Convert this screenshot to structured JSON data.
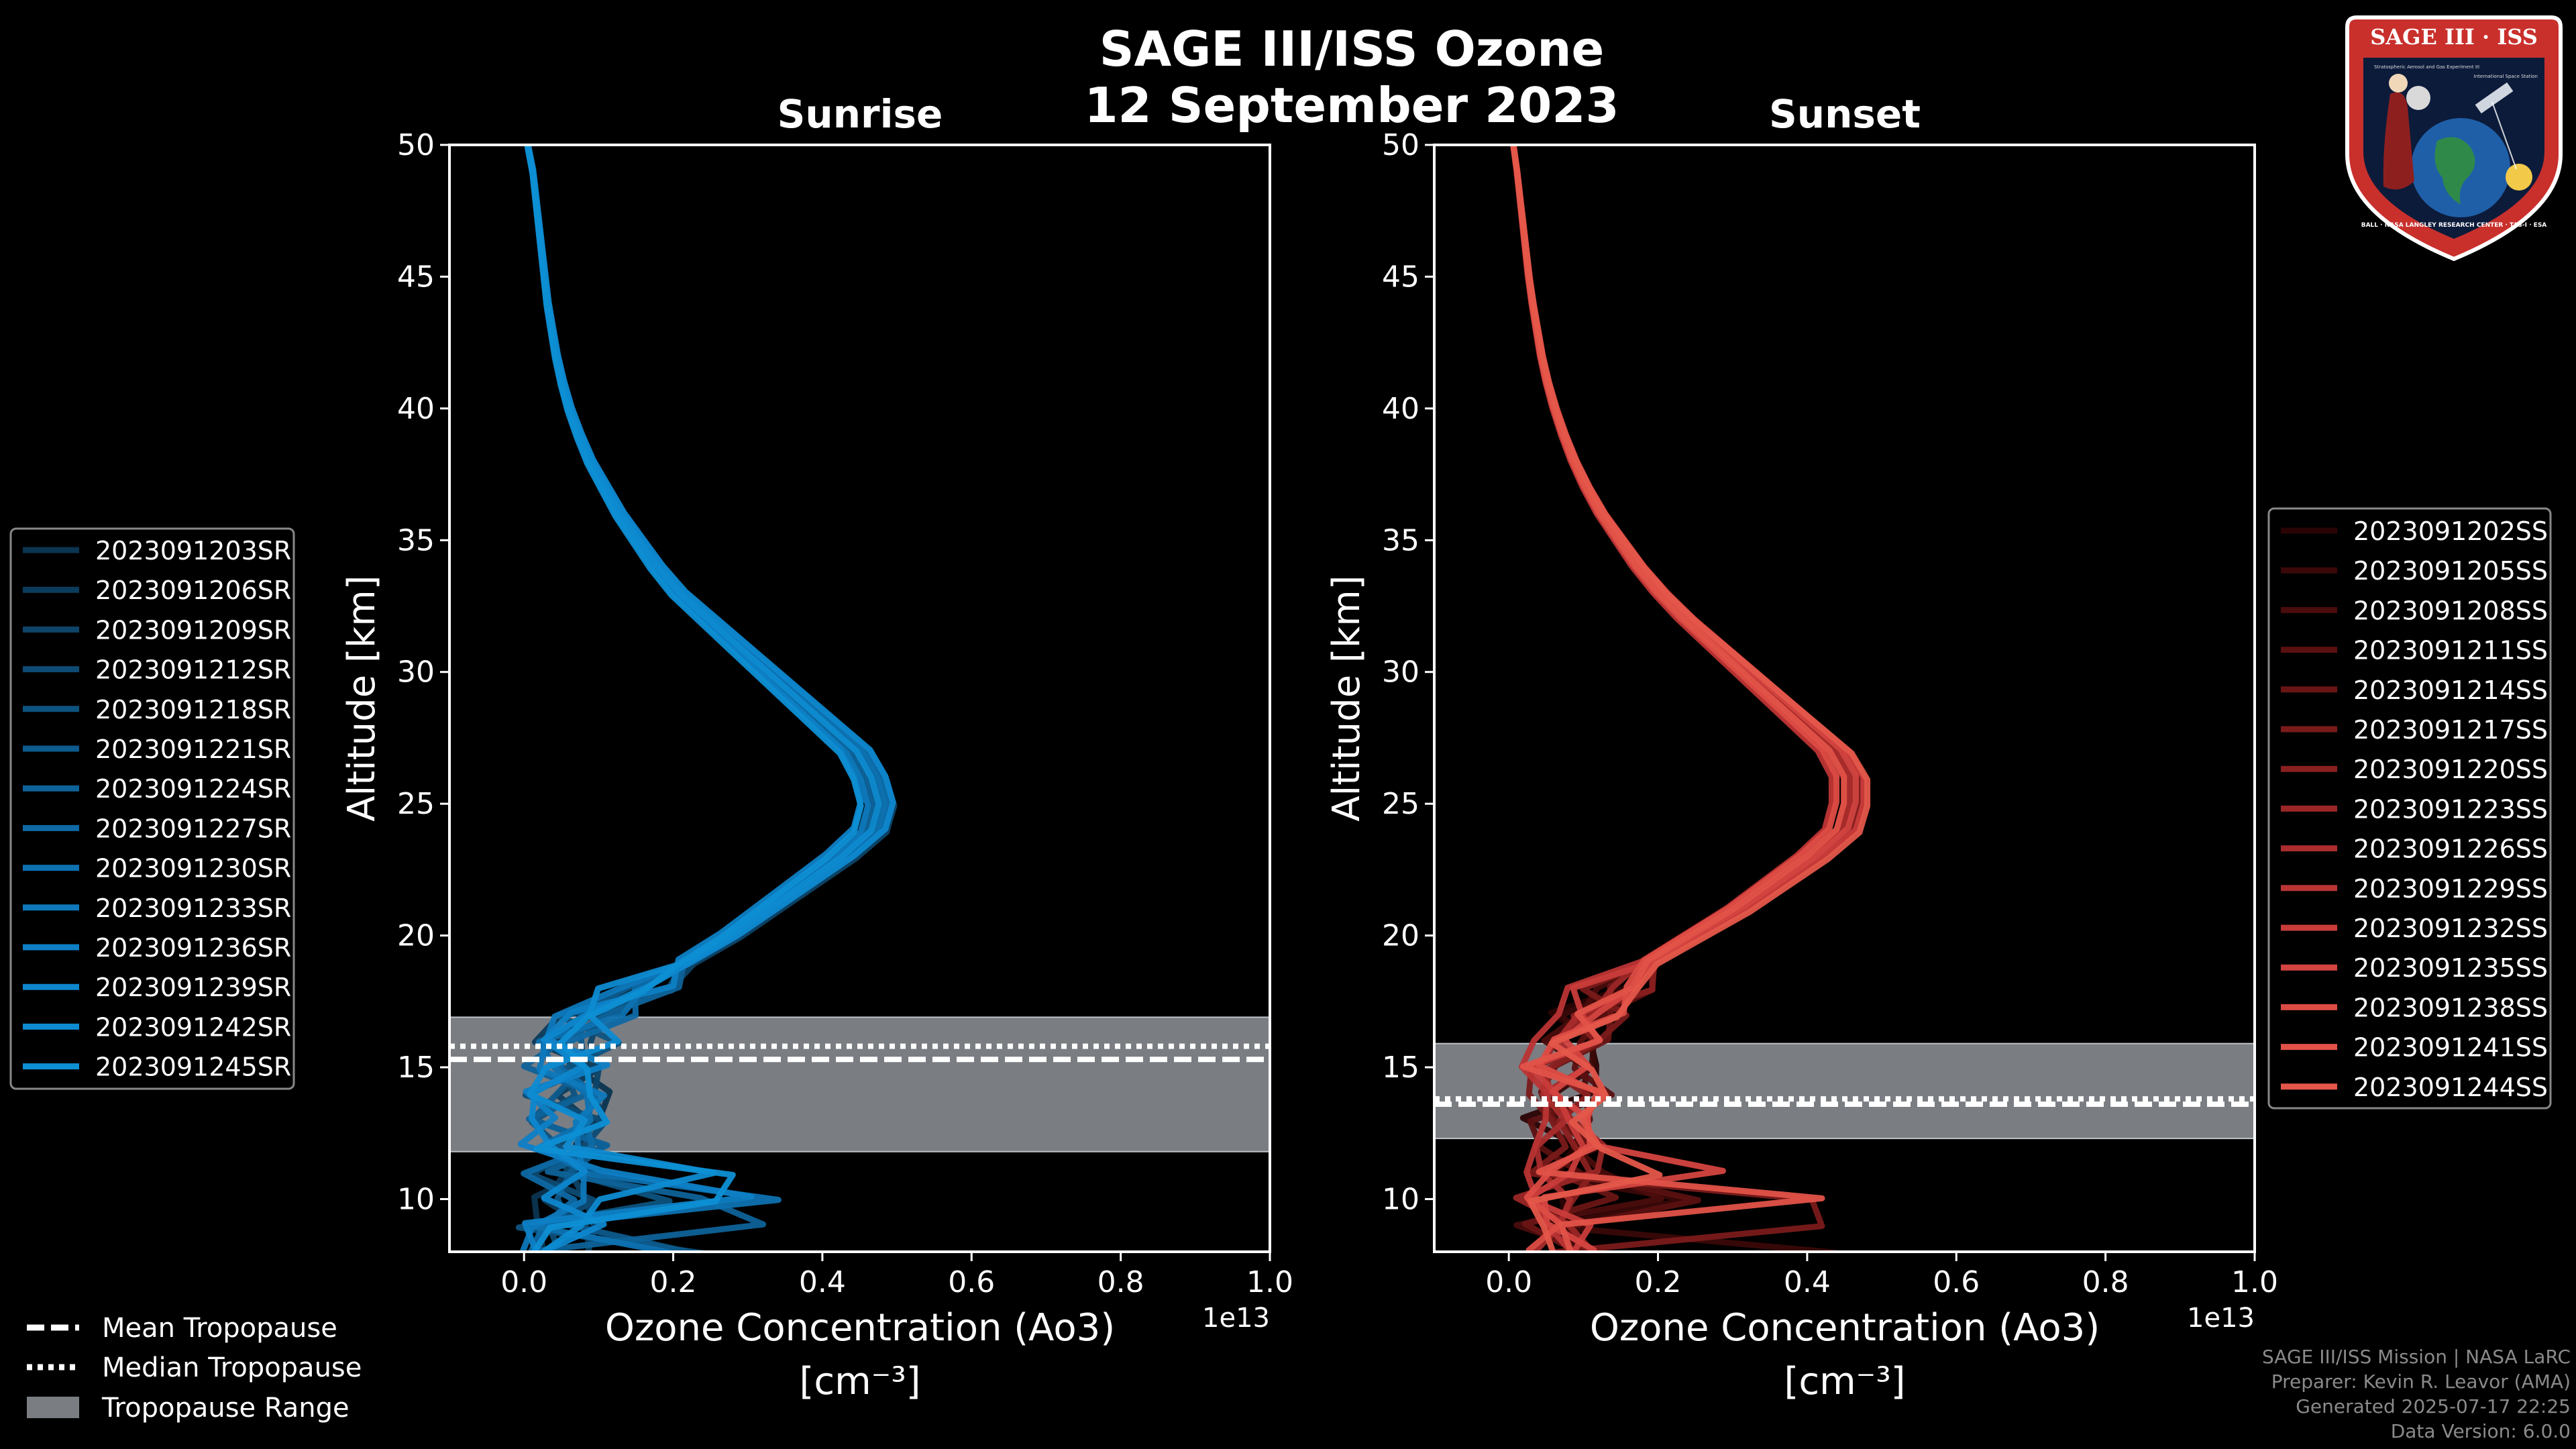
{
  "figure": {
    "title_line1": "SAGE III/ISS Ozone",
    "title_line2": "12 September 2023"
  },
  "colors": {
    "background": "#000000",
    "sunrise_main": "#0e8fd4",
    "sunset_main": "#e4574a",
    "tropopause_band": "#7a7d82"
  },
  "footer": {
    "line1": "SAGE III/ISS Mission | NASA LaRC",
    "line2": "Preparer: Kevin R. Leavor (AMA)",
    "line3": "Generated 2025-07-17 22:25",
    "line4": "Data Version: 6.0.0"
  },
  "badge": {
    "top_text": "SAGE III · ISS",
    "ring_text": "BALL · NASA LANGLEY RESEARCH CENTER · TAS-I · ESA",
    "inner_left": "Stratospheric Aerosol and Gas Experiment III",
    "inner_right": "International Space Station"
  },
  "tropopause_legend": {
    "mean": "Mean Tropopause",
    "median": "Median Tropopause",
    "range": "Tropopause Range"
  },
  "chart_data": [
    {
      "type": "line",
      "title": "Sunrise",
      "xlabel_line1": "Ozone Concentration (Ao3)",
      "xlabel_line2": "[cm⁻³]",
      "ylabel": "Altitude [km]",
      "x_multiplier": "1e13",
      "xlim": [
        -0.1,
        1.0
      ],
      "ylim": [
        8,
        50
      ],
      "xticks": [
        "0.0",
        "0.2",
        "0.4",
        "0.6",
        "0.8",
        "1.0"
      ],
      "yticks": [
        "10",
        "15",
        "20",
        "25",
        "30",
        "35",
        "40",
        "45",
        "50"
      ],
      "tropopause": {
        "range": [
          11.8,
          16.9
        ],
        "mean": 15.3,
        "median": 15.8
      },
      "series_names": [
        "2023091203SR",
        "2023091206SR",
        "2023091209SR",
        "2023091212SR",
        "2023091218SR",
        "2023091221SR",
        "2023091224SR",
        "2023091227SR",
        "2023091230SR",
        "2023091233SR",
        "2023091236SR",
        "2023091239SR",
        "2023091242SR",
        "2023091245SR"
      ],
      "series_colors": [
        "#0b3550",
        "#0c3c5c",
        "#0d4468",
        "#0d4b74",
        "#0d5380",
        "#0d5a8c",
        "#0e6298",
        "#0e69a4",
        "#0e71b0",
        "#0e78bb",
        "#0e80c5",
        "#0e87cd",
        "#0e8bd1",
        "#0e8fd4"
      ],
      "profile": {
        "alt": [
          8,
          9,
          10,
          11,
          12,
          13,
          14,
          15,
          16,
          17,
          18,
          19,
          20,
          21,
          22,
          23,
          24,
          25,
          26,
          27,
          28,
          29,
          30,
          31,
          32,
          33,
          34,
          35,
          36,
          37,
          38,
          39,
          40,
          41,
          42,
          43,
          44,
          45,
          46,
          47,
          48,
          49,
          50
        ],
        "ozone": [
          0.05,
          0.05,
          0.05,
          0.05,
          0.055,
          0.06,
          0.06,
          0.06,
          0.07,
          0.1,
          0.16,
          0.22,
          0.28,
          0.33,
          0.38,
          0.43,
          0.47,
          0.48,
          0.47,
          0.45,
          0.41,
          0.37,
          0.33,
          0.29,
          0.25,
          0.21,
          0.18,
          0.155,
          0.13,
          0.11,
          0.09,
          0.075,
          0.062,
          0.052,
          0.044,
          0.038,
          0.032,
          0.028,
          0.024,
          0.02,
          0.016,
          0.012,
          0.005
        ]
      }
    },
    {
      "type": "line",
      "title": "Sunset",
      "xlabel_line1": "Ozone Concentration (Ao3)",
      "xlabel_line2": "[cm⁻³]",
      "ylabel": "Altitude [km]",
      "x_multiplier": "1e13",
      "xlim": [
        -0.1,
        1.0
      ],
      "ylim": [
        8,
        50
      ],
      "xticks": [
        "0.0",
        "0.2",
        "0.4",
        "0.6",
        "0.8",
        "1.0"
      ],
      "yticks": [
        "10",
        "15",
        "20",
        "25",
        "30",
        "35",
        "40",
        "45",
        "50"
      ],
      "tropopause": {
        "range": [
          12.3,
          15.9
        ],
        "mean": 13.6,
        "median": 13.8
      },
      "series_names": [
        "2023091202SS",
        "2023091205SS",
        "2023091208SS",
        "2023091211SS",
        "2023091214SS",
        "2023091217SS",
        "2023091220SS",
        "2023091223SS",
        "2023091226SS",
        "2023091229SS",
        "2023091232SS",
        "2023091235SS",
        "2023091238SS",
        "2023091241SS",
        "2023091244SS"
      ],
      "series_colors": [
        "#2a0404",
        "#3a0808",
        "#4a0c0c",
        "#5a1010",
        "#6a1515",
        "#7a1a1a",
        "#8a2020",
        "#9a2626",
        "#aa2c2c",
        "#ba3434",
        "#c83c3a",
        "#d44440",
        "#dc4c44",
        "#e25248",
        "#e4574a"
      ],
      "profile": {
        "alt": [
          8,
          9,
          10,
          11,
          12,
          13,
          14,
          15,
          16,
          17,
          18,
          19,
          20,
          21,
          22,
          23,
          24,
          25,
          26,
          27,
          28,
          29,
          30,
          31,
          32,
          33,
          34,
          35,
          36,
          37,
          38,
          39,
          40,
          41,
          42,
          43,
          44,
          45,
          46,
          47,
          48,
          49,
          50
        ],
        "ozone": [
          0.06,
          0.07,
          0.07,
          0.08,
          0.08,
          0.08,
          0.08,
          0.08,
          0.09,
          0.11,
          0.14,
          0.19,
          0.25,
          0.31,
          0.36,
          0.41,
          0.45,
          0.46,
          0.46,
          0.44,
          0.4,
          0.36,
          0.32,
          0.28,
          0.24,
          0.205,
          0.175,
          0.15,
          0.125,
          0.105,
          0.088,
          0.074,
          0.062,
          0.052,
          0.044,
          0.038,
          0.032,
          0.027,
          0.023,
          0.019,
          0.015,
          0.011,
          0.006
        ]
      }
    }
  ]
}
